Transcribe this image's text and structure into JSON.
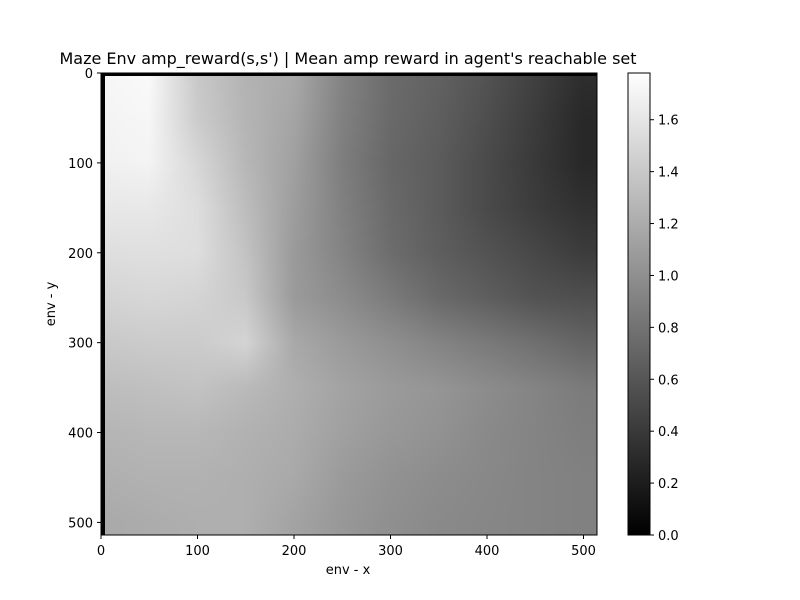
{
  "chart_data": {
    "type": "heatmap",
    "title": "Maze Env amp_reward(s,s') | Mean amp reward in agent's reachable set",
    "xlabel": "env - x",
    "ylabel": "env - y",
    "xlim": [
      0,
      514
    ],
    "ylim": [
      514,
      0
    ],
    "x_ticks": [
      "0",
      "100",
      "200",
      "300",
      "400",
      "500"
    ],
    "x_tick_values": [
      0,
      100,
      200,
      300,
      400,
      500
    ],
    "y_ticks": [
      "0",
      "100",
      "200",
      "300",
      "400",
      "500"
    ],
    "y_tick_values": [
      0,
      100,
      200,
      300,
      400,
      500
    ],
    "colormap": "gray",
    "colorbar": {
      "range": [
        0.0,
        1.78
      ],
      "ticks": [
        "0.0",
        "0.2",
        "0.4",
        "0.6",
        "0.8",
        "1.0",
        "1.2",
        "1.4",
        "1.6"
      ],
      "tick_values": [
        0.0,
        0.2,
        0.4,
        0.6,
        0.8,
        1.0,
        1.2,
        1.4,
        1.6
      ]
    },
    "x": [
      0,
      50,
      100,
      150,
      200,
      250,
      300,
      350,
      400,
      450,
      500
    ],
    "y": [
      0,
      50,
      100,
      150,
      200,
      250,
      300,
      350,
      400,
      450,
      500
    ],
    "z": [
      [
        1.72,
        1.74,
        1.4,
        1.25,
        1.18,
        0.92,
        0.75,
        0.68,
        0.58,
        0.45,
        0.32
      ],
      [
        1.7,
        1.72,
        1.42,
        1.26,
        1.15,
        0.9,
        0.74,
        0.66,
        0.55,
        0.42,
        0.28
      ],
      [
        1.68,
        1.7,
        1.5,
        1.28,
        1.12,
        0.88,
        0.72,
        0.64,
        0.52,
        0.4,
        0.28
      ],
      [
        1.62,
        1.62,
        1.55,
        1.32,
        1.1,
        0.9,
        0.74,
        0.64,
        0.52,
        0.42,
        0.34
      ],
      [
        1.55,
        1.56,
        1.55,
        1.36,
        1.08,
        0.92,
        0.76,
        0.66,
        0.58,
        0.5,
        0.42
      ],
      [
        1.48,
        1.5,
        1.48,
        1.4,
        1.08,
        0.98,
        0.86,
        0.74,
        0.66,
        0.58,
        0.55
      ],
      [
        1.4,
        1.42,
        1.42,
        1.48,
        1.18,
        1.08,
        1.0,
        0.92,
        0.85,
        0.78,
        0.7
      ],
      [
        1.32,
        1.34,
        1.36,
        1.3,
        1.22,
        1.14,
        1.08,
        1.04,
        0.98,
        0.92,
        0.86
      ],
      [
        1.26,
        1.28,
        1.28,
        1.24,
        1.2,
        1.12,
        1.06,
        1.02,
        0.96,
        0.92,
        0.88
      ],
      [
        1.22,
        1.24,
        1.24,
        1.22,
        1.18,
        1.08,
        1.02,
        0.98,
        0.95,
        0.92,
        0.9
      ],
      [
        1.18,
        1.2,
        1.22,
        1.22,
        1.14,
        1.06,
        1.0,
        0.96,
        0.94,
        0.92,
        0.9
      ]
    ],
    "grid": false
  }
}
